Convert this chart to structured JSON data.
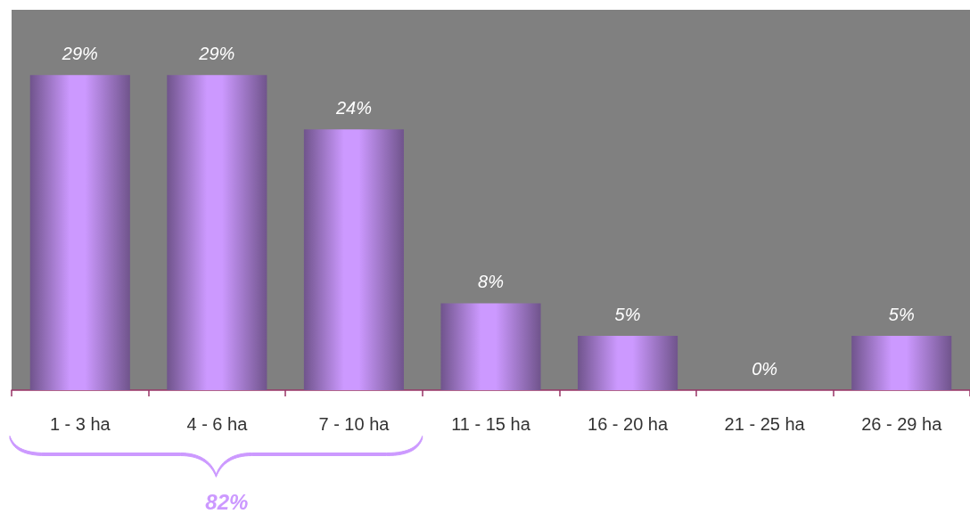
{
  "chart_data": {
    "type": "bar",
    "categories": [
      "1 - 3 ha",
      "4 - 6 ha",
      "7 - 10 ha",
      "11 - 15 ha",
      "16 - 20 ha",
      "21 - 25 ha",
      "26 - 29 ha"
    ],
    "values": [
      29,
      29,
      24,
      8,
      5,
      0,
      5
    ],
    "color": "#cc99ff",
    "value_labels": [
      "29%",
      "29%",
      "24%",
      "8%",
      "5%",
      "0%",
      "5%"
    ],
    "ylim": [
      0,
      35
    ],
    "tick_labels": "x",
    "annotations": [
      "82%"
    ]
  }
}
